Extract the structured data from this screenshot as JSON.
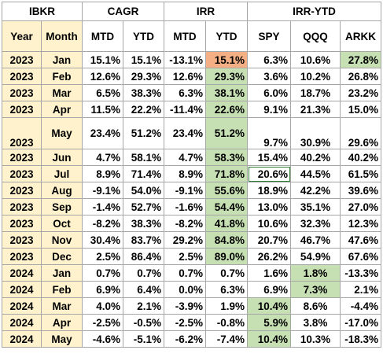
{
  "header": {
    "group": [
      "IBKR",
      "CAGR",
      "IRR",
      "IRR-YTD"
    ],
    "columns": [
      "Year",
      "Month",
      "MTD",
      "YTD",
      "MTD",
      "YTD",
      "SPY",
      "QQQ",
      "ARKK"
    ]
  },
  "rows": [
    {
      "year": "2023",
      "month": "Jan",
      "v": [
        "15.1%",
        "15.1%",
        "-13.1%",
        "15.1%",
        "6.3%",
        "10.6%",
        "27.8%"
      ]
    },
    {
      "year": "2023",
      "month": "Feb",
      "v": [
        "12.6%",
        "29.3%",
        "12.6%",
        "29.3%",
        "3.6%",
        "10.2%",
        "26.8%"
      ]
    },
    {
      "year": "2023",
      "month": "Mar",
      "v": [
        "6.5%",
        "38.3%",
        "6.3%",
        "38.1%",
        "6.0%",
        "18.7%",
        "23.2%"
      ]
    },
    {
      "year": "2023",
      "month": "Apr",
      "v": [
        "11.5%",
        "22.2%",
        "-11.4%",
        "22.6%",
        "9.1%",
        "21.3%",
        "15.0%"
      ]
    },
    {
      "year": "2023",
      "month": "May",
      "v": [
        "23.4%",
        "51.2%",
        "23.4%",
        "51.2%",
        "9.7%",
        "30.9%",
        "29.6%"
      ]
    },
    {
      "year": "2023",
      "month": "Jun",
      "v": [
        "4.7%",
        "58.1%",
        "4.7%",
        "58.3%",
        "15.4%",
        "40.2%",
        "40.2%"
      ]
    },
    {
      "year": "2023",
      "month": "Jul",
      "v": [
        "8.9%",
        "71.4%",
        "8.9%",
        "71.8%",
        "20.6%",
        "44.5%",
        "61.5%"
      ]
    },
    {
      "year": "2023",
      "month": "Aug",
      "v": [
        "-9.1%",
        "54.0%",
        "-9.1%",
        "55.6%",
        "18.9%",
        "42.2%",
        "39.6%"
      ]
    },
    {
      "year": "2023",
      "month": "Sep",
      "v": [
        "-1.4%",
        "52.7%",
        "-1.6%",
        "54.4%",
        "13.0%",
        "35.1%",
        "27.0%"
      ]
    },
    {
      "year": "2023",
      "month": "Oct",
      "v": [
        "-8.2%",
        "38.3%",
        "-8.2%",
        "41.8%",
        "10.6%",
        "32.3%",
        "12.3%"
      ]
    },
    {
      "year": "2023",
      "month": "Nov",
      "v": [
        "30.4%",
        "83.7%",
        "29.2%",
        "84.8%",
        "20.7%",
        "46.7%",
        "47.6%"
      ]
    },
    {
      "year": "2023",
      "month": "Dec",
      "v": [
        "2.5%",
        "86.4%",
        "2.5%",
        "89.0%",
        "26.2%",
        "54.9%",
        "67.6%"
      ]
    },
    {
      "year": "2024",
      "month": "Jan",
      "v": [
        "0.7%",
        "0.7%",
        "0.7%",
        "0.7%",
        "1.6%",
        "1.8%",
        "-13.3%"
      ]
    },
    {
      "year": "2024",
      "month": "Feb",
      "v": [
        "6.9%",
        "6.4%",
        "0.0%",
        "6.3%",
        "6.9%",
        "7.3%",
        "2.1%"
      ]
    },
    {
      "year": "2024",
      "month": "Mar",
      "v": [
        "4.0%",
        "2.1%",
        "-3.9%",
        "1.9%",
        "10.4%",
        "8.6%",
        "-4.4%"
      ]
    },
    {
      "year": "2024",
      "month": "Apr",
      "v": [
        "-2.5%",
        "-0.5%",
        "-2.5%",
        "-0.8%",
        "5.9%",
        "3.8%",
        "-17.0%"
      ]
    },
    {
      "year": "2024",
      "month": "May",
      "v": [
        "-4.6%",
        "-5.1%",
        "-6.2%",
        "-7.4%",
        "10.4%",
        "10.3%",
        "-18.3%"
      ]
    }
  ],
  "highlight_colors": {
    "green": "#c6e0b4",
    "orange": "#f4b084",
    "header_fill": "#fff2cc"
  }
}
